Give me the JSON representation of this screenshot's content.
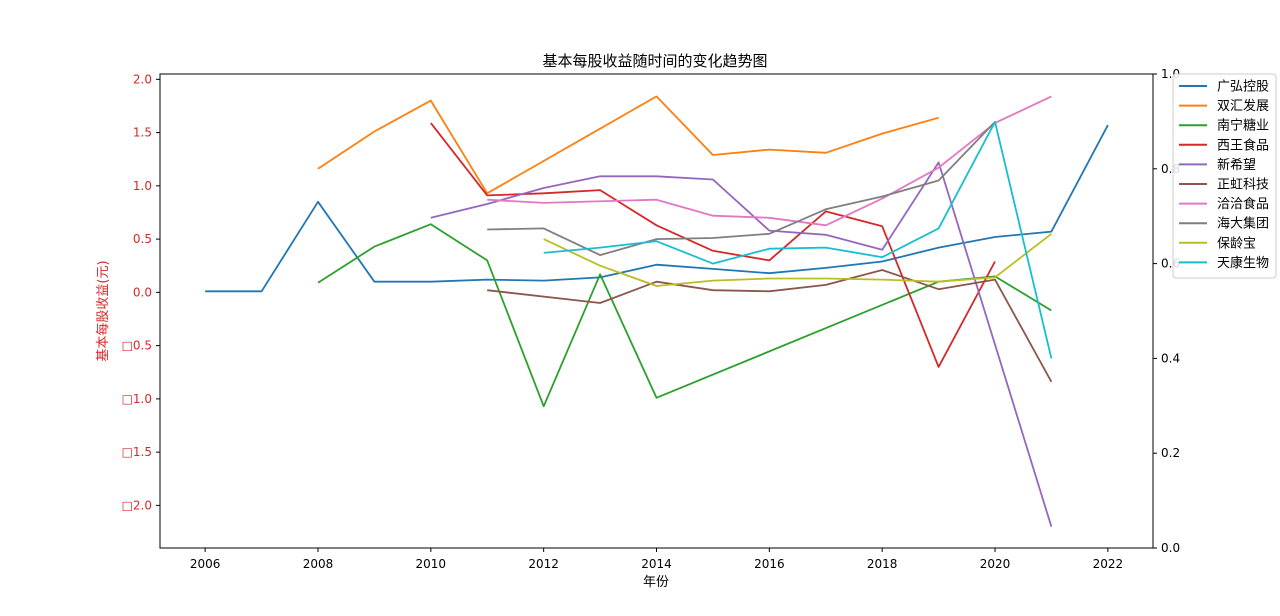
{
  "chart_data": {
    "type": "line",
    "title": "基本每股收益随时间的变化趋势图",
    "xlabel": "年份",
    "ylabel": "基本每股收益(元)",
    "xlim": [
      2005.2,
      2022.8
    ],
    "ylim": [
      -2.4,
      2.05
    ],
    "y2lim": [
      0.0,
      1.0
    ],
    "x_ticks": [
      2006,
      2008,
      2010,
      2012,
      2014,
      2016,
      2018,
      2020,
      2022
    ],
    "y_ticks": [
      2.0,
      1.5,
      1.0,
      0.5,
      0.0,
      -0.5,
      -1.0,
      -1.5,
      -2.0
    ],
    "y_tick_labels": [
      "2.0",
      "1.5",
      "1.0",
      "0.5",
      "0.0",
      "□0.5",
      "□1.0",
      "□1.5",
      "□2.0"
    ],
    "y2_ticks": [
      0.0,
      0.2,
      0.4,
      0.6,
      0.8,
      1.0
    ],
    "y2_tick_labels": [
      "0.0",
      "0.2",
      "0.4",
      "0.6",
      "0.8",
      "1.0"
    ],
    "grid": false,
    "legend_position": "top-right outside",
    "series": [
      {
        "name": "广弘控股",
        "color": "#1f77b4",
        "points": [
          [
            2006,
            0.01
          ],
          [
            2007,
            0.01
          ],
          [
            2008,
            0.85
          ],
          [
            2009,
            0.1
          ],
          [
            2010,
            0.1
          ],
          [
            2011,
            0.12
          ],
          [
            2012,
            0.11
          ],
          [
            2013,
            0.14
          ],
          [
            2014,
            0.26
          ],
          [
            2015,
            0.22
          ],
          [
            2016,
            0.18
          ],
          [
            2017,
            0.23
          ],
          [
            2018,
            0.29
          ],
          [
            2019,
            0.42
          ],
          [
            2020,
            0.52
          ],
          [
            2021,
            0.57
          ],
          [
            2022,
            1.57
          ]
        ]
      },
      {
        "name": "双汇发展",
        "color": "#ff7f0e",
        "points": [
          [
            2008,
            1.16
          ],
          [
            2009,
            1.51
          ],
          [
            2010,
            1.8
          ],
          [
            2011,
            0.93
          ],
          [
            2014,
            1.84
          ],
          [
            2015,
            1.29
          ],
          [
            2016,
            1.34
          ],
          [
            2017,
            1.31
          ],
          [
            2018,
            1.49
          ],
          [
            2019,
            1.64
          ]
        ]
      },
      {
        "name": "南宁糖业",
        "color": "#2ca02c",
        "points": [
          [
            2008,
            0.09
          ],
          [
            2009,
            0.43
          ],
          [
            2010,
            0.64
          ],
          [
            2011,
            0.3
          ],
          [
            2012,
            -1.07
          ],
          [
            2013,
            0.17
          ],
          [
            2014,
            -0.99
          ],
          [
            2019,
            0.1
          ],
          [
            2020,
            0.15
          ],
          [
            2021,
            -0.17
          ]
        ]
      },
      {
        "name": "西王食品",
        "color": "#d62728",
        "points": [
          [
            2010,
            1.59
          ],
          [
            2011,
            0.91
          ],
          [
            2012,
            0.93
          ],
          [
            2013,
            0.96
          ],
          [
            2014,
            0.63
          ],
          [
            2015,
            0.39
          ],
          [
            2016,
            0.3
          ],
          [
            2017,
            0.76
          ],
          [
            2018,
            0.62
          ],
          [
            2019,
            -0.7
          ],
          [
            2020,
            0.29
          ]
        ]
      },
      {
        "name": "新希望",
        "color": "#9467bd",
        "points": [
          [
            2010,
            0.7
          ],
          [
            2011,
            0.83
          ],
          [
            2012,
            0.98
          ],
          [
            2013,
            1.09
          ],
          [
            2014,
            1.09
          ],
          [
            2015,
            1.06
          ],
          [
            2016,
            0.58
          ],
          [
            2017,
            0.54
          ],
          [
            2018,
            0.4
          ],
          [
            2019,
            1.22
          ],
          [
            2021,
            -2.2
          ]
        ]
      },
      {
        "name": "正虹科技",
        "color": "#8c564b",
        "points": [
          [
            2011,
            0.02
          ],
          [
            2013,
            -0.1
          ],
          [
            2014,
            0.1
          ],
          [
            2015,
            0.02
          ],
          [
            2016,
            0.01
          ],
          [
            2017,
            0.07
          ],
          [
            2018,
            0.21
          ],
          [
            2019,
            0.03
          ],
          [
            2020,
            0.12
          ],
          [
            2021,
            -0.84
          ]
        ]
      },
      {
        "name": "洽洽食品",
        "color": "#e377c2",
        "points": [
          [
            2011,
            0.87
          ],
          [
            2012,
            0.84
          ],
          [
            2014,
            0.87
          ],
          [
            2015,
            0.72
          ],
          [
            2016,
            0.7
          ],
          [
            2017,
            0.63
          ],
          [
            2018,
            0.88
          ],
          [
            2019,
            1.17
          ],
          [
            2020,
            1.59
          ],
          [
            2021,
            1.84
          ]
        ]
      },
      {
        "name": "海大集团",
        "color": "#7f7f7f",
        "points": [
          [
            2011,
            0.59
          ],
          [
            2012,
            0.6
          ],
          [
            2013,
            0.35
          ],
          [
            2014,
            0.5
          ],
          [
            2015,
            0.51
          ],
          [
            2016,
            0.55
          ],
          [
            2017,
            0.78
          ],
          [
            2018,
            0.9
          ],
          [
            2019,
            1.05
          ],
          [
            2020,
            1.6
          ]
        ]
      },
      {
        "name": "保龄宝",
        "color": "#bcbd22",
        "points": [
          [
            2012,
            0.5
          ],
          [
            2013,
            0.25
          ],
          [
            2014,
            0.06
          ],
          [
            2015,
            0.11
          ],
          [
            2016,
            0.13
          ],
          [
            2017,
            0.13
          ],
          [
            2018,
            0.12
          ],
          [
            2019,
            0.1
          ],
          [
            2020,
            0.14
          ],
          [
            2021,
            0.55
          ]
        ]
      },
      {
        "name": "天康生物",
        "color": "#17becf",
        "points": [
          [
            2012,
            0.37
          ],
          [
            2013,
            0.42
          ],
          [
            2014,
            0.48
          ],
          [
            2015,
            0.27
          ],
          [
            2016,
            0.41
          ],
          [
            2017,
            0.42
          ],
          [
            2018,
            0.33
          ],
          [
            2019,
            0.6
          ],
          [
            2020,
            1.6
          ],
          [
            2021,
            -0.62
          ]
        ]
      }
    ]
  }
}
